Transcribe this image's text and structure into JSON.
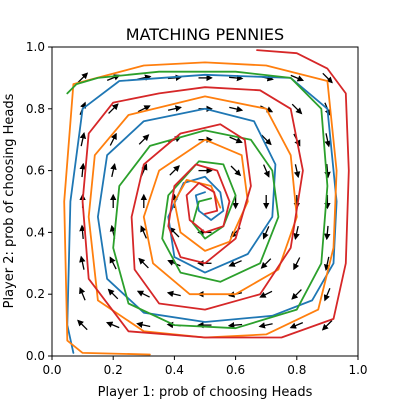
{
  "chart_data": {
    "type": "line",
    "title": "MATCHING PENNIES",
    "xlabel": "Player 1: prob of choosing Heads",
    "ylabel": "Player 2: prob of choosing Heads",
    "xlim": [
      0,
      1
    ],
    "ylim": [
      0,
      1
    ],
    "xticks": [
      "0.0",
      "0.2",
      "0.4",
      "0.6",
      "0.8",
      "1.0"
    ],
    "yticks": [
      "0.0",
      "0.2",
      "0.4",
      "0.6",
      "0.8",
      "1.0"
    ],
    "grid": false,
    "legend": "none",
    "colors": [
      "#1f77b4",
      "#ff7f0e",
      "#2ca02c",
      "#d62728"
    ],
    "series": [
      {
        "color": "#1f77b4",
        "x": [
          0.07,
          0.05,
          0.06,
          0.1,
          0.22,
          0.5,
          0.78,
          0.9,
          0.93,
          0.92,
          0.85,
          0.72,
          0.5,
          0.3,
          0.18,
          0.15,
          0.18,
          0.3,
          0.5,
          0.66,
          0.73,
          0.72,
          0.64,
          0.5,
          0.4,
          0.38,
          0.43,
          0.5,
          0.55,
          0.56,
          0.52,
          0.48,
          0.47,
          0.5
        ],
        "y": [
          0.01,
          0.1,
          0.5,
          0.8,
          0.89,
          0.91,
          0.9,
          0.8,
          0.5,
          0.3,
          0.18,
          0.13,
          0.11,
          0.14,
          0.25,
          0.45,
          0.65,
          0.76,
          0.8,
          0.76,
          0.62,
          0.45,
          0.33,
          0.27,
          0.32,
          0.45,
          0.56,
          0.58,
          0.53,
          0.47,
          0.44,
          0.47,
          0.52,
          0.53
        ]
      },
      {
        "color": "#ff7f0e",
        "x": [
          0.32,
          0.1,
          0.05,
          0.04,
          0.07,
          0.3,
          0.5,
          0.7,
          0.9,
          0.93,
          0.92,
          0.87,
          0.7,
          0.5,
          0.3,
          0.15,
          0.12,
          0.14,
          0.25,
          0.5,
          0.7,
          0.78,
          0.8,
          0.74,
          0.6,
          0.45,
          0.33,
          0.3,
          0.35,
          0.5,
          0.62,
          0.64,
          0.58,
          0.5,
          0.42,
          0.4,
          0.44,
          0.52,
          0.55
        ],
        "y": [
          0.005,
          0.01,
          0.05,
          0.5,
          0.88,
          0.94,
          0.95,
          0.94,
          0.89,
          0.6,
          0.35,
          0.15,
          0.07,
          0.06,
          0.08,
          0.18,
          0.45,
          0.65,
          0.78,
          0.84,
          0.8,
          0.65,
          0.45,
          0.28,
          0.2,
          0.2,
          0.3,
          0.45,
          0.6,
          0.7,
          0.65,
          0.5,
          0.37,
          0.34,
          0.4,
          0.5,
          0.57,
          0.55,
          0.48
        ]
      },
      {
        "color": "#2ca02c",
        "x": [
          0.05,
          0.08,
          0.15,
          0.35,
          0.6,
          0.78,
          0.88,
          0.9,
          0.88,
          0.8,
          0.6,
          0.4,
          0.25,
          0.2,
          0.22,
          0.32,
          0.5,
          0.65,
          0.72,
          0.74,
          0.68,
          0.55,
          0.42,
          0.36,
          0.38,
          0.48,
          0.56,
          0.6,
          0.56,
          0.5,
          0.46,
          0.48,
          0.52
        ],
        "y": [
          0.85,
          0.88,
          0.9,
          0.92,
          0.92,
          0.9,
          0.8,
          0.55,
          0.3,
          0.15,
          0.09,
          0.1,
          0.17,
          0.35,
          0.55,
          0.68,
          0.73,
          0.7,
          0.6,
          0.45,
          0.3,
          0.24,
          0.27,
          0.38,
          0.52,
          0.63,
          0.62,
          0.52,
          0.42,
          0.38,
          0.43,
          0.5,
          0.51
        ]
      },
      {
        "color": "#d62728",
        "x": [
          0.67,
          0.8,
          0.9,
          0.96,
          0.97,
          0.96,
          0.92,
          0.75,
          0.5,
          0.25,
          0.12,
          0.1,
          0.12,
          0.2,
          0.35,
          0.5,
          0.68,
          0.78,
          0.82,
          0.78,
          0.68,
          0.5,
          0.35,
          0.27,
          0.26,
          0.3,
          0.42,
          0.55,
          0.63,
          0.65,
          0.6,
          0.5,
          0.42,
          0.38,
          0.4,
          0.47,
          0.54,
          0.58,
          0.56,
          0.5,
          0.45,
          0.44,
          0.48,
          0.53,
          0.54,
          0.5
        ],
        "y": [
          0.99,
          0.98,
          0.93,
          0.85,
          0.6,
          0.3,
          0.12,
          0.06,
          0.06,
          0.08,
          0.25,
          0.5,
          0.72,
          0.82,
          0.85,
          0.87,
          0.86,
          0.8,
          0.6,
          0.35,
          0.2,
          0.15,
          0.17,
          0.28,
          0.45,
          0.62,
          0.72,
          0.75,
          0.7,
          0.55,
          0.38,
          0.3,
          0.32,
          0.42,
          0.55,
          0.62,
          0.6,
          0.5,
          0.42,
          0.4,
          0.44,
          0.52,
          0.56,
          0.53,
          0.47,
          0.46
        ]
      }
    ],
    "quiver": {
      "grid_x": [
        0.1,
        0.2,
        0.3,
        0.4,
        0.5,
        0.6,
        0.7,
        0.8,
        0.9
      ],
      "grid_y": [
        0.1,
        0.2,
        0.3,
        0.4,
        0.5,
        0.6,
        0.7,
        0.8,
        0.9
      ]
    }
  }
}
